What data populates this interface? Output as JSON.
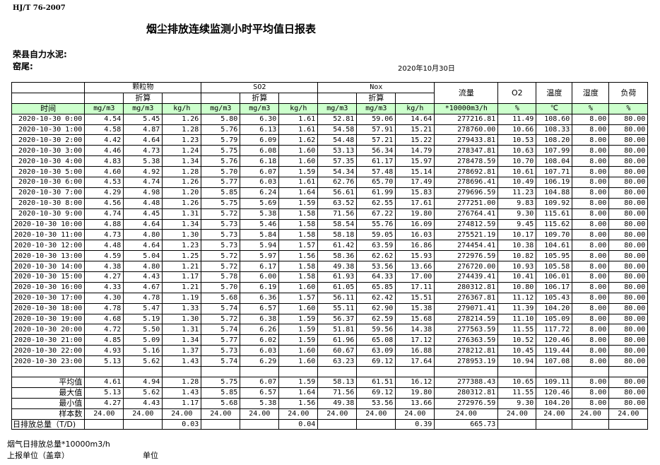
{
  "standard": "HJ/T  76-2007",
  "title": "烟尘排放连续监测小时平均值日报表",
  "company": "荣县自力水泥:",
  "kiln": "窑尾:",
  "date": "2020年10月30日",
  "header": {
    "groups": [
      "颗粒物",
      "SO2",
      "Nox"
    ],
    "converted": "折算",
    "flow": "流量",
    "o2": "O2",
    "temp": "温度",
    "humidity": "湿度",
    "load": "负荷",
    "units": [
      "时间",
      "mg/m3",
      "mg/m3",
      "kg/h",
      "mg/m3",
      "mg/m3",
      "kg/h",
      "mg/m3",
      "mg/m3",
      "kg/h",
      "*10000m3/h",
      "%",
      "℃",
      "%",
      "%"
    ]
  },
  "header_color": "#ccffcc",
  "rows": [
    [
      "2020-10-30 0:00",
      "4.54",
      "5.45",
      "1.26",
      "5.80",
      "6.30",
      "1.61",
      "52.81",
      "59.06",
      "14.64",
      "277216.81",
      "11.49",
      "108.60",
      "8.00",
      "80.00"
    ],
    [
      "2020-10-30 1:00",
      "4.58",
      "4.87",
      "1.28",
      "5.76",
      "6.13",
      "1.61",
      "54.58",
      "57.91",
      "15.21",
      "278760.00",
      "10.66",
      "108.33",
      "8.00",
      "80.00"
    ],
    [
      "2020-10-30 2:00",
      "4.42",
      "4.64",
      "1.23",
      "5.79",
      "6.09",
      "1.62",
      "54.48",
      "57.21",
      "15.22",
      "279433.81",
      "10.53",
      "108.20",
      "8.00",
      "80.00"
    ],
    [
      "2020-10-30 3:00",
      "4.46",
      "4.73",
      "1.24",
      "5.75",
      "6.08",
      "1.60",
      "53.13",
      "56.34",
      "14.79",
      "278347.81",
      "10.63",
      "107.99",
      "8.00",
      "80.00"
    ],
    [
      "2020-10-30 4:00",
      "4.83",
      "5.38",
      "1.34",
      "5.76",
      "6.18",
      "1.60",
      "57.35",
      "61.17",
      "15.97",
      "278478.59",
      "10.70",
      "108.04",
      "8.00",
      "80.00"
    ],
    [
      "2020-10-30 5:00",
      "4.60",
      "4.92",
      "1.28",
      "5.70",
      "6.07",
      "1.59",
      "54.34",
      "57.48",
      "15.14",
      "278692.81",
      "10.61",
      "107.71",
      "8.00",
      "80.00"
    ],
    [
      "2020-10-30 6:00",
      "4.53",
      "4.74",
      "1.26",
      "5.77",
      "6.03",
      "1.61",
      "62.76",
      "65.70",
      "17.49",
      "278696.41",
      "10.49",
      "106.19",
      "8.00",
      "80.00"
    ],
    [
      "2020-10-30 7:00",
      "4.29",
      "4.98",
      "1.20",
      "5.85",
      "6.24",
      "1.64",
      "56.61",
      "61.99",
      "15.83",
      "279696.59",
      "11.23",
      "104.88",
      "8.00",
      "80.00"
    ],
    [
      "2020-10-30 8:00",
      "4.56",
      "4.48",
      "1.26",
      "5.75",
      "5.69",
      "1.59",
      "63.52",
      "62.55",
      "17.61",
      "277251.00",
      "9.83",
      "109.92",
      "8.00",
      "80.00"
    ],
    [
      "2020-10-30 9:00",
      "4.74",
      "4.45",
      "1.31",
      "5.72",
      "5.38",
      "1.58",
      "71.56",
      "67.22",
      "19.80",
      "276764.41",
      "9.30",
      "115.61",
      "8.00",
      "80.00"
    ],
    [
      "2020-10-30 10:00",
      "4.88",
      "4.64",
      "1.34",
      "5.73",
      "5.46",
      "1.58",
      "58.54",
      "55.76",
      "16.09",
      "274812.59",
      "9.45",
      "115.62",
      "8.00",
      "80.00"
    ],
    [
      "2020-10-30 11:00",
      "4.73",
      "4.80",
      "1.30",
      "5.73",
      "5.84",
      "1.58",
      "58.18",
      "59.05",
      "16.03",
      "275521.19",
      "10.17",
      "109.70",
      "8.00",
      "80.00"
    ],
    [
      "2020-10-30 12:00",
      "4.48",
      "4.64",
      "1.23",
      "5.73",
      "5.94",
      "1.57",
      "61.42",
      "63.59",
      "16.86",
      "274454.41",
      "10.38",
      "104.61",
      "8.00",
      "80.00"
    ],
    [
      "2020-10-30 13:00",
      "4.59",
      "5.04",
      "1.25",
      "5.72",
      "5.97",
      "1.56",
      "58.36",
      "62.62",
      "15.93",
      "272976.59",
      "10.82",
      "105.95",
      "8.00",
      "80.00"
    ],
    [
      "2020-10-30 14:00",
      "4.38",
      "4.80",
      "1.21",
      "5.72",
      "6.17",
      "1.58",
      "49.38",
      "53.56",
      "13.66",
      "276720.00",
      "10.93",
      "105.58",
      "8.00",
      "80.00"
    ],
    [
      "2020-10-30 15:00",
      "4.27",
      "4.43",
      "1.17",
      "5.78",
      "6.00",
      "1.58",
      "61.93",
      "64.33",
      "17.00",
      "274439.41",
      "10.41",
      "106.01",
      "8.00",
      "80.00"
    ],
    [
      "2020-10-30 16:00",
      "4.33",
      "4.67",
      "1.21",
      "5.70",
      "6.19",
      "1.60",
      "61.05",
      "65.85",
      "17.11",
      "280312.81",
      "10.80",
      "106.17",
      "8.00",
      "80.00"
    ],
    [
      "2020-10-30 17:00",
      "4.30",
      "4.78",
      "1.19",
      "5.68",
      "6.36",
      "1.57",
      "56.11",
      "62.42",
      "15.51",
      "276367.81",
      "11.12",
      "105.43",
      "8.00",
      "80.00"
    ],
    [
      "2020-10-30 18:00",
      "4.78",
      "5.47",
      "1.33",
      "5.74",
      "6.57",
      "1.60",
      "55.11",
      "62.90",
      "15.38",
      "279071.41",
      "11.39",
      "104.20",
      "8.00",
      "80.00"
    ],
    [
      "2020-10-30 19:00",
      "4.68",
      "5.19",
      "1.30",
      "5.72",
      "6.38",
      "1.59",
      "56.37",
      "62.59",
      "15.68",
      "278214.59",
      "11.10",
      "105.09",
      "8.00",
      "80.00"
    ],
    [
      "2020-10-30 20:00",
      "4.72",
      "5.50",
      "1.31",
      "5.74",
      "6.26",
      "1.59",
      "51.81",
      "59.56",
      "14.38",
      "277563.59",
      "11.55",
      "117.72",
      "8.00",
      "80.00"
    ],
    [
      "2020-10-30 21:00",
      "4.85",
      "5.09",
      "1.34",
      "5.77",
      "6.02",
      "1.59",
      "61.96",
      "65.08",
      "17.12",
      "276363.59",
      "10.52",
      "120.46",
      "8.00",
      "80.00"
    ],
    [
      "2020-10-30 22:00",
      "4.93",
      "5.16",
      "1.37",
      "5.73",
      "6.03",
      "1.60",
      "60.67",
      "63.09",
      "16.88",
      "278212.81",
      "10.45",
      "119.44",
      "8.00",
      "80.00"
    ],
    [
      "2020-10-30 23:00",
      "5.13",
      "5.62",
      "1.43",
      "5.74",
      "6.29",
      "1.60",
      "63.23",
      "69.12",
      "17.64",
      "278953.19",
      "10.94",
      "107.08",
      "8.00",
      "80.00"
    ]
  ],
  "stats": [
    [
      "平均值",
      "4.61",
      "4.94",
      "1.28",
      "5.75",
      "6.07",
      "1.59",
      "58.13",
      "61.51",
      "16.12",
      "277388.43",
      "10.65",
      "109.11",
      "8.00",
      "80.00"
    ],
    [
      "最大值",
      "5.13",
      "5.62",
      "1.43",
      "5.85",
      "6.57",
      "1.64",
      "71.56",
      "69.12",
      "19.80",
      "280312.81",
      "11.55",
      "120.46",
      "8.00",
      "80.00"
    ],
    [
      "最小值",
      "4.27",
      "4.43",
      "1.17",
      "5.68",
      "5.38",
      "1.56",
      "49.38",
      "53.56",
      "13.66",
      "272976.59",
      "9.30",
      "104.20",
      "8.00",
      "80.00"
    ],
    [
      "样本数",
      "24.00",
      "24.00",
      "24.00",
      "24.00",
      "24.00",
      "24.00",
      "24.00",
      "24.00",
      "24.00",
      "24.00",
      "24.00",
      "24.00",
      "24.00",
      "24.00"
    ],
    [
      "日排放总量（T/D)",
      "",
      "",
      "0.03",
      "",
      "",
      "0.04",
      "",
      "",
      "0.39",
      "665.73",
      "",
      "",
      "",
      ""
    ]
  ],
  "footer": {
    "flue_total": "烟气日排放总量*10000m3/h",
    "reporting_unit": "上报单位（盖章）",
    "unit": "单位"
  }
}
